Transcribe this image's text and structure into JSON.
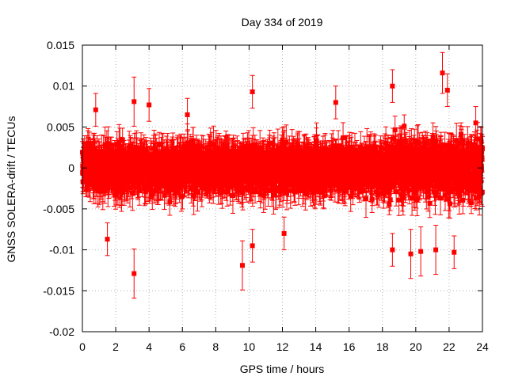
{
  "chart_data": {
    "type": "scatter",
    "title": "Day 334 of 2019",
    "xlabel": "GPS time / hours",
    "ylabel": "GNSS SOLERA-drift / TECUs",
    "xlim": [
      0,
      24
    ],
    "ylim": [
      -0.02,
      0.015
    ],
    "xticks": [
      0,
      2,
      4,
      6,
      8,
      10,
      12,
      14,
      16,
      18,
      20,
      22,
      24
    ],
    "yticks": [
      -0.02,
      -0.015,
      -0.01,
      -0.005,
      0,
      0.005,
      0.01,
      0.015
    ],
    "xtick_labels": [
      "0",
      "2",
      "4",
      "6",
      "8",
      "10",
      "12",
      "14",
      "16",
      "18",
      "20",
      "22",
      "24"
    ],
    "ytick_labels": [
      "-0.02",
      "-0.015",
      "-0.01",
      "-0.005",
      "0",
      "0.005",
      "0.01",
      "0.015"
    ],
    "grid": true,
    "marker": "square",
    "series_color": "#ff0000",
    "error_bars": true,
    "series": [
      {
        "name": "SOLERA drift",
        "n_points": 2880,
        "x_range": [
          0,
          24
        ],
        "typical_spread": 0.0022,
        "typical_error": 0.0018,
        "notable_points": [
          {
            "x": 3.1,
            "y": -0.0129,
            "err": 0.003
          },
          {
            "x": 3.1,
            "y": 0.0081,
            "err": 0.003
          },
          {
            "x": 9.6,
            "y": -0.0119,
            "err": 0.003
          },
          {
            "x": 10.2,
            "y": 0.0093,
            "err": 0.002
          },
          {
            "x": 10.2,
            "y": -0.0095,
            "err": 0.002
          },
          {
            "x": 1.5,
            "y": -0.0087,
            "err": 0.002
          },
          {
            "x": 4.0,
            "y": 0.0077,
            "err": 0.002
          },
          {
            "x": 18.6,
            "y": 0.01,
            "err": 0.002
          },
          {
            "x": 18.6,
            "y": -0.01,
            "err": 0.002
          },
          {
            "x": 19.7,
            "y": -0.0105,
            "err": 0.003
          },
          {
            "x": 20.3,
            "y": -0.0102,
            "err": 0.003
          },
          {
            "x": 21.6,
            "y": 0.0116,
            "err": 0.0025
          },
          {
            "x": 21.2,
            "y": -0.01,
            "err": 0.003
          },
          {
            "x": 22.3,
            "y": -0.0103,
            "err": 0.002
          },
          {
            "x": 21.9,
            "y": 0.0095,
            "err": 0.002
          },
          {
            "x": 0.8,
            "y": 0.0071,
            "err": 0.002
          },
          {
            "x": 6.3,
            "y": 0.0065,
            "err": 0.002
          },
          {
            "x": 12.1,
            "y": -0.008,
            "err": 0.002
          },
          {
            "x": 15.2,
            "y": 0.008,
            "err": 0.002
          },
          {
            "x": 23.6,
            "y": 0.0055,
            "err": 0.002
          }
        ]
      }
    ]
  }
}
